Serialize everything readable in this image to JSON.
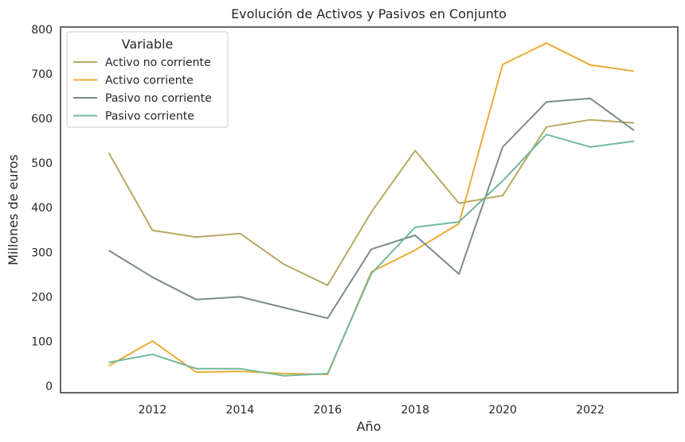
{
  "chart_data": {
    "type": "line",
    "title": "Evolución de Activos y Pasivos en Conjunto",
    "xlabel": "Año",
    "ylabel": "Millones de euros",
    "x": [
      2011,
      2012,
      2013,
      2014,
      2015,
      2016,
      2017,
      2018,
      2019,
      2020,
      2021,
      2022,
      2023
    ],
    "xlim": [
      2009.9,
      2024.0
    ],
    "ylim": [
      -15,
      805
    ],
    "xticks": [
      2012,
      2014,
      2016,
      2018,
      2020,
      2022
    ],
    "yticks": [
      0,
      100,
      200,
      300,
      400,
      500,
      600,
      700,
      800
    ],
    "grid": false,
    "legend": {
      "title": "Variable",
      "position": "top-left"
    },
    "series": [
      {
        "name": "Activo no corriente",
        "color": "#b8a862",
        "values": [
          523,
          349,
          334,
          342,
          273,
          226,
          390,
          528,
          410,
          427,
          581,
          597,
          590
        ]
      },
      {
        "name": "Activo corriente",
        "color": "#ebac35",
        "values": [
          45,
          101,
          31,
          33,
          28,
          26,
          256,
          305,
          364,
          721,
          769,
          720,
          706
        ]
      },
      {
        "name": "Pasivo no corriente",
        "color": "#7a8c8a",
        "values": [
          304,
          244,
          194,
          200,
          176,
          152,
          307,
          338,
          251,
          536,
          637,
          645,
          573
        ]
      },
      {
        "name": "Pasivo corriente",
        "color": "#72b99c",
        "values": [
          53,
          71,
          39,
          39,
          23,
          28,
          252,
          356,
          368,
          460,
          564,
          536,
          549
        ]
      }
    ]
  }
}
